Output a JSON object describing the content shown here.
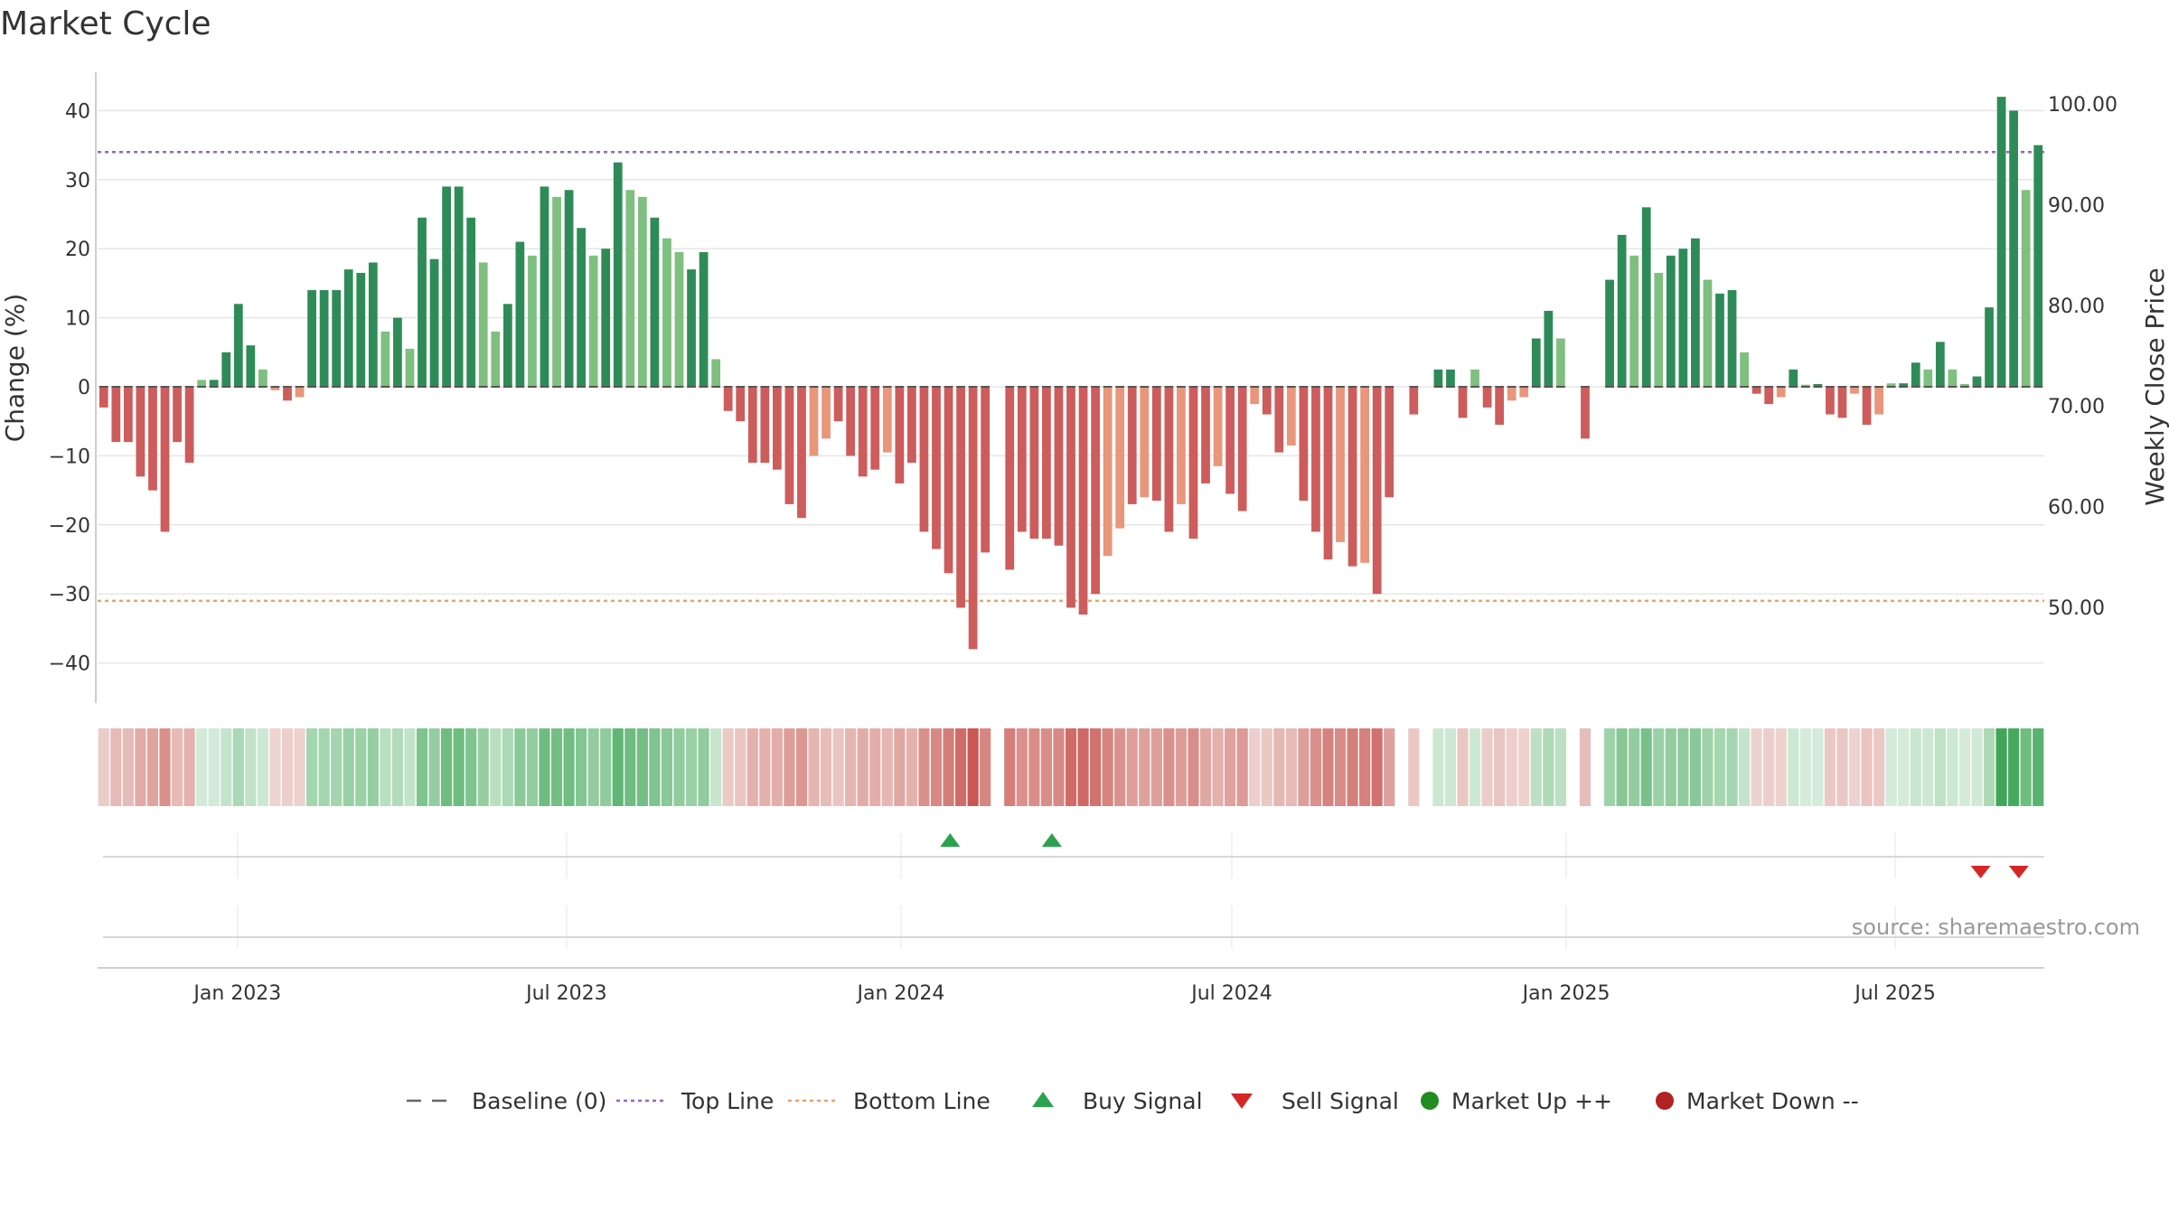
{
  "chart_data": {
    "type": "bar",
    "title": "Market Cycle",
    "ylabel": "Change (%)",
    "y2label": "Weekly Close Price",
    "ylim": [
      -46,
      46
    ],
    "yticks": [
      40,
      30,
      20,
      10,
      0,
      -10,
      -20,
      -30,
      -40
    ],
    "ytick_labels": [
      "40",
      "30",
      "20",
      "10",
      "0",
      "−10",
      "−20",
      "−30",
      "−40"
    ],
    "y2ticks": [
      "100.00",
      "90.00",
      "80.00",
      "70.00",
      "60.00",
      "50.00"
    ],
    "x_start": "2022-10-16",
    "x_end": "2025-09-21",
    "xticks": [
      {
        "date": "2023-01-01",
        "label": "Jan 2023"
      },
      {
        "date": "2023-07-01",
        "label": "Jul 2023"
      },
      {
        "date": "2024-01-01",
        "label": "Jan 2024"
      },
      {
        "date": "2024-07-01",
        "label": "Jul 2024"
      },
      {
        "date": "2025-01-01",
        "label": "Jan 2025"
      },
      {
        "date": "2025-07-01",
        "label": "Jul 2025"
      }
    ],
    "first_week": "2022-10-16",
    "week_step_days": 7,
    "values": [
      -3,
      -8,
      -8,
      -13,
      -15,
      -21,
      -8,
      -11,
      1,
      1,
      5,
      12,
      6,
      2.5,
      -0.5,
      -2,
      -1.5,
      14,
      14,
      14,
      17,
      16.5,
      18,
      8,
      10,
      5.5,
      24.5,
      18.5,
      29,
      29,
      24.5,
      18,
      8,
      12,
      21,
      19,
      29,
      27.5,
      28.5,
      23,
      19,
      20,
      32.5,
      28.5,
      27.5,
      24.5,
      21.5,
      19.5,
      17,
      19.5,
      4,
      -3.5,
      -5,
      -11,
      -11,
      -12,
      -17,
      -19,
      -10,
      -7.5,
      -5,
      -10,
      -13,
      -12,
      -9.5,
      -14,
      -11,
      -21,
      -23.5,
      -27,
      -32,
      -38,
      -24,
      null,
      -26.5,
      -21,
      -22,
      -22,
      -23,
      -32,
      -33,
      -30,
      -24.5,
      -20.5,
      -17,
      -16,
      -16.5,
      -21,
      -17,
      -22,
      -14,
      -11.5,
      -15.5,
      -18,
      -2.5,
      -4,
      -9.5,
      -8.5,
      -16.5,
      -21,
      -25,
      -22.5,
      -26,
      -25.5,
      -30,
      -16,
      null,
      -4,
      null,
      2.5,
      2.5,
      -4.5,
      2.5,
      -3,
      -5.5,
      -2,
      -1.5,
      7,
      11,
      7,
      null,
      -7.5,
      null,
      15.5,
      22,
      19,
      26,
      16.5,
      19,
      20,
      21.5,
      15.5,
      13.5,
      14,
      5,
      -1,
      -2.5,
      -1.5,
      2.5,
      0.3,
      0.4,
      -4,
      -4.5,
      -1,
      -5.5,
      -4,
      0.5,
      0.5,
      3.5,
      2.5,
      6.5,
      2.5,
      0.4,
      1.5,
      11.5,
      42,
      40,
      28.5,
      35
    ],
    "top_line": 34,
    "bottom_line": -31,
    "buy_signals": [
      "2024-01-28",
      "2024-03-24"
    ],
    "sell_signals": [
      "2025-08-17",
      "2025-09-07"
    ],
    "legend": [
      {
        "label": "Baseline (0)",
        "symbol": "dash",
        "color": "#666666"
      },
      {
        "label": "Top Line",
        "symbol": "dot",
        "color": "#9467bd"
      },
      {
        "label": "Bottom Line",
        "symbol": "dot",
        "color": "#e8a36b"
      },
      {
        "label": "Buy Signal",
        "symbol": "triangle-up",
        "color": "#2ca24f"
      },
      {
        "label": "Sell Signal",
        "symbol": "triangle-down",
        "color": "#d62728"
      },
      {
        "label": "Market Up ++",
        "symbol": "circle",
        "color": "#228b22"
      },
      {
        "label": "Market Down --",
        "symbol": "circle",
        "color": "#b22222"
      }
    ],
    "source": "source: sharemaestro.com",
    "grid": true
  },
  "colors": {
    "up_strong": "#2e8b57",
    "up_light": "#7fbf7f",
    "down_strong": "#cd5c5c",
    "down_light": "#e9967a",
    "top_line": "#9467bd",
    "bottom_line": "#e8a36b",
    "buy": "#2ca24f",
    "sell": "#d62728"
  }
}
